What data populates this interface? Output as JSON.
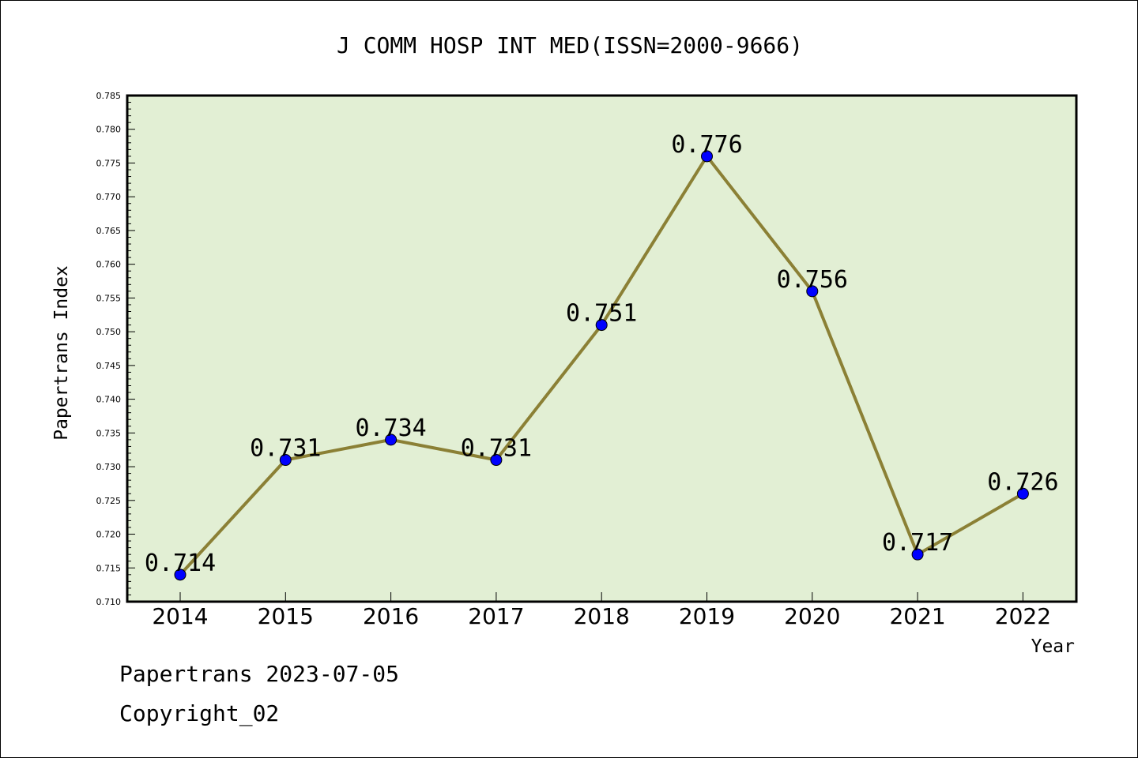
{
  "chart_data": {
    "type": "line",
    "title": "J COMM HOSP INT MED(ISSN=2000-9666)",
    "xlabel": "Year",
    "ylabel": "Papertrans Index",
    "categories": [
      "2014",
      "2015",
      "2016",
      "2017",
      "2018",
      "2019",
      "2020",
      "2021",
      "2022"
    ],
    "values": [
      0.714,
      0.731,
      0.734,
      0.731,
      0.751,
      0.776,
      0.756,
      0.717,
      0.726
    ],
    "data_labels": [
      "0.714",
      "0.731",
      "0.734",
      "0.731",
      "0.751",
      "0.776",
      "0.756",
      "0.717",
      "0.726"
    ],
    "ylim": [
      0.71,
      0.785
    ],
    "yticks": [
      0.71,
      0.715,
      0.72,
      0.725,
      0.73,
      0.735,
      0.74,
      0.745,
      0.75,
      0.755,
      0.76,
      0.765,
      0.77,
      0.775,
      0.78,
      0.785
    ],
    "ytick_labels": [
      "0.710",
      "0.715",
      "0.720",
      "0.725",
      "0.730",
      "0.735",
      "0.740",
      "0.745",
      "0.750",
      "0.755",
      "0.760",
      "0.765",
      "0.770",
      "0.775",
      "0.780",
      "0.785"
    ],
    "grid": false,
    "legend": "none",
    "colors": {
      "plot_background": "#e2efd4",
      "line": "#8b8035",
      "marker": "#0000ff"
    }
  },
  "footer": {
    "source": "Papertrans 2023-07-05",
    "copyright": "Copyright_02"
  }
}
